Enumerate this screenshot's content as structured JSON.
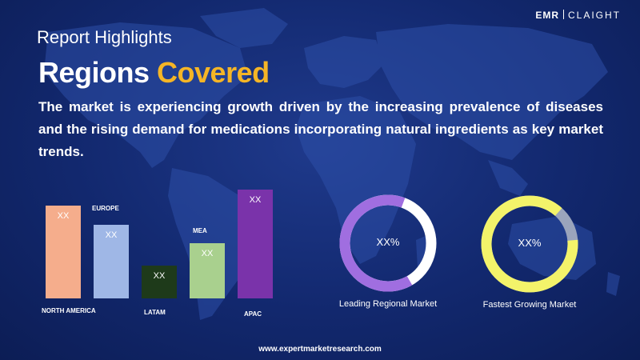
{
  "logo": {
    "emr": "EMR",
    "claight": "CLAIGHT"
  },
  "header": {
    "subtitle": "Report Highlights",
    "title_main": "Regions",
    "title_accent": "Covered",
    "description": "The market is experiencing growth driven by the increasing prevalence of diseases and the rising demand for medications incorporating natural ingredients as key market trends."
  },
  "regions": [
    {
      "label": "NORTH AMERICA",
      "value": "XX",
      "level": 0.85,
      "color": "#f5ad8c"
    },
    {
      "label": "EUROPE",
      "value": "XX",
      "level": 0.68,
      "color": "#9fb7e6"
    },
    {
      "label": "LATAM",
      "value": "XX",
      "level": 0.3,
      "color": "#1e3a1a"
    },
    {
      "label": "MEA",
      "value": "XX",
      "level": 0.51,
      "color": "#a9d08e"
    },
    {
      "label": "APAC",
      "value": "XX",
      "level": 1.0,
      "color": "#7a33aa"
    }
  ],
  "donuts": [
    {
      "value": "XX%",
      "caption": "Leading Regional Market",
      "fill": 0.64,
      "color": "#a06ee0",
      "rest": "#ffffff"
    },
    {
      "value": "XX%",
      "caption": "Fastest Growing Market",
      "fill": 0.88,
      "color": "#f3f36a",
      "rest": "#9aa4bc"
    }
  ],
  "footer": {
    "url": "www.expertmarketresearch.com"
  }
}
